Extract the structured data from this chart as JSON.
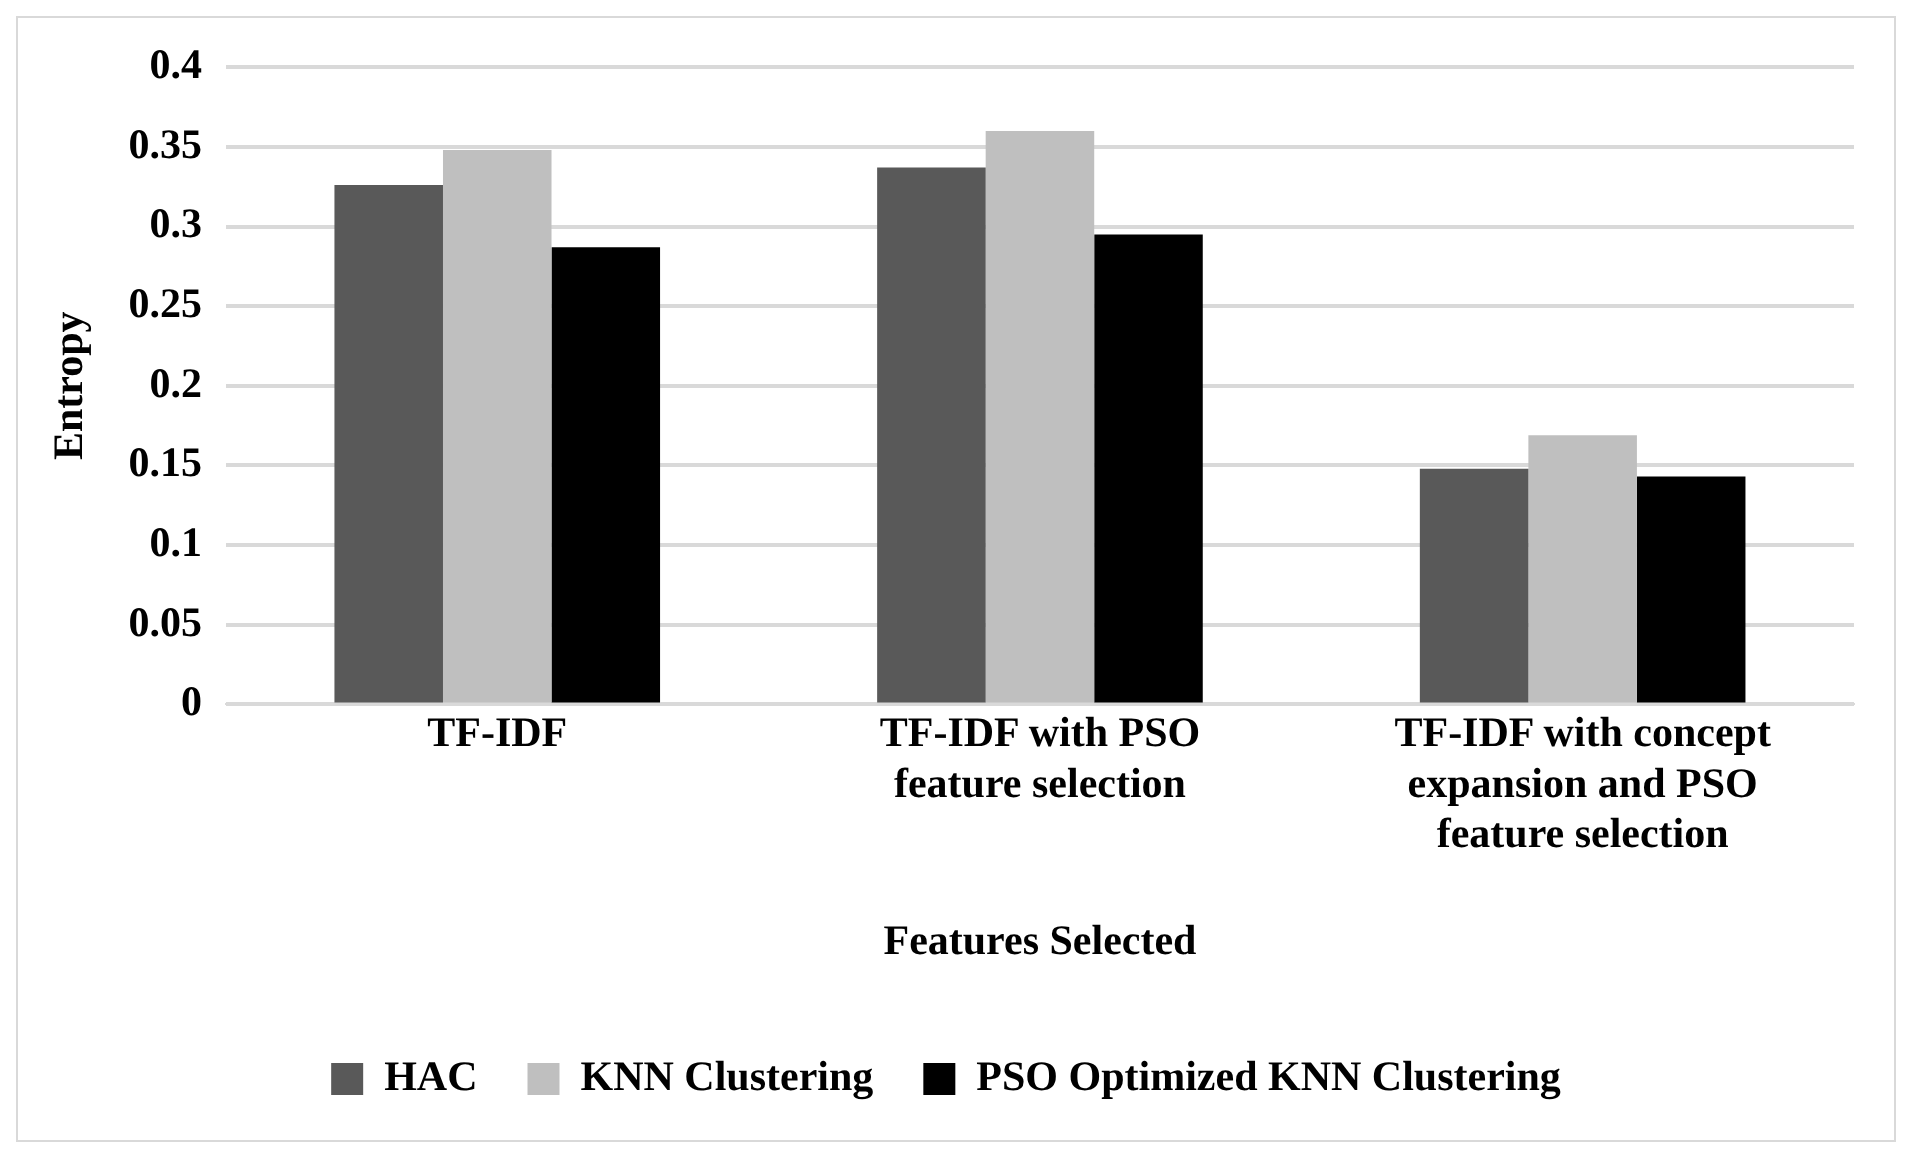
{
  "chart_data": {
    "type": "bar",
    "xlabel": "Features Selected",
    "ylabel": "Entropy",
    "categories": [
      "TF-IDF",
      "TF-IDF with PSO feature selection",
      "TF-IDF with concept expansion and PSO feature selection"
    ],
    "series": [
      {
        "name": "HAC",
        "color": "#595959",
        "values": [
          0.326,
          0.337,
          0.148
        ]
      },
      {
        "name": "KNN Clustering",
        "color": "#bfbfbf",
        "values": [
          0.348,
          0.36,
          0.169
        ]
      },
      {
        "name": "PSO Optimized KNN Clustering",
        "color": "#000000",
        "values": [
          0.287,
          0.295,
          0.143
        ]
      }
    ],
    "ylim": [
      0,
      0.4
    ],
    "yticks": [
      0,
      0.05,
      0.1,
      0.15,
      0.2,
      0.25,
      0.3,
      0.35,
      0.4
    ],
    "grid": "y",
    "legend": "bottom"
  }
}
